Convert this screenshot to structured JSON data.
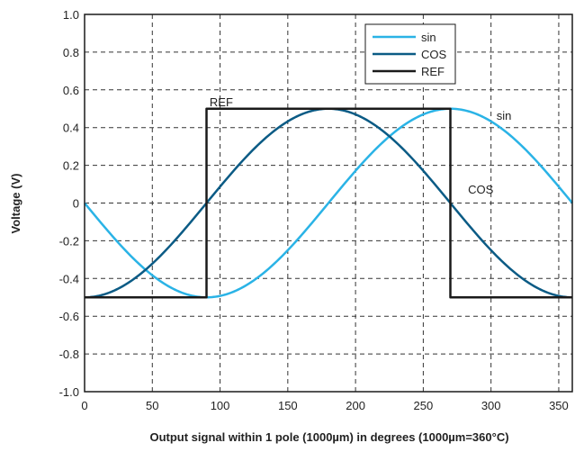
{
  "chart_data": {
    "type": "line",
    "title": "",
    "xlabel": "Output signal within 1 pole (1000µm) in degrees (1000µm=360°C)",
    "ylabel": "Voltage (V)",
    "xlim": [
      0,
      360
    ],
    "ylim": [
      -1.0,
      1.0
    ],
    "x_ticks": [
      0,
      50,
      100,
      150,
      200,
      250,
      300,
      350
    ],
    "x_tick_labels": [
      "0",
      "50",
      "100",
      "150",
      "200",
      "250",
      "300",
      "350"
    ],
    "y_ticks": [
      1.0,
      0.8,
      0.6,
      0.4,
      0.2,
      0,
      -0.2,
      -0.4,
      -0.6,
      -0.8,
      -1.0
    ],
    "y_tick_labels": [
      "1.0",
      "0.8",
      "0.6",
      "0.4",
      "0.2",
      "0",
      "-0.2",
      "-0.4",
      "-0.6",
      "-0.8",
      "-1.0"
    ],
    "grid": true,
    "grid_style": "dashed",
    "legend_position": "top-right",
    "series": [
      {
        "name": "sin",
        "color": "#2ab3e6",
        "x": [
          0,
          15,
          30,
          45,
          60,
          75,
          90,
          105,
          120,
          135,
          150,
          165,
          180,
          195,
          210,
          225,
          240,
          255,
          270,
          285,
          300,
          315,
          330,
          345,
          360
        ],
        "y": [
          0,
          -0.129,
          -0.25,
          -0.354,
          -0.433,
          -0.483,
          -0.5,
          -0.483,
          -0.433,
          -0.354,
          -0.25,
          -0.129,
          0,
          0.129,
          0.25,
          0.354,
          0.433,
          0.483,
          0.5,
          0.483,
          0.433,
          0.354,
          0.25,
          0.129,
          0
        ]
      },
      {
        "name": "COS",
        "color": "#0b5b85",
        "x": [
          0,
          15,
          30,
          45,
          60,
          75,
          90,
          105,
          120,
          135,
          150,
          165,
          180,
          195,
          210,
          225,
          240,
          255,
          270,
          285,
          300,
          315,
          330,
          345,
          360
        ],
        "y": [
          -0.5,
          -0.483,
          -0.433,
          -0.354,
          -0.25,
          -0.129,
          0,
          0.129,
          0.25,
          0.354,
          0.433,
          0.483,
          0.5,
          0.483,
          0.433,
          0.354,
          0.25,
          0.129,
          0,
          -0.129,
          -0.25,
          -0.354,
          -0.433,
          -0.483,
          -0.5
        ]
      },
      {
        "name": "REF",
        "color": "#1a1a1a",
        "x": [
          0,
          90,
          90,
          270,
          270,
          360
        ],
        "y": [
          -0.5,
          -0.5,
          0.5,
          0.5,
          -0.5,
          -0.5
        ]
      }
    ],
    "annotations": [
      {
        "text": "REF",
        "x": 75,
        "y": 0.5
      },
      {
        "text": "sin",
        "x": 304,
        "y": 0.47
      },
      {
        "text": "COS",
        "x": 283,
        "y": 0.05
      }
    ]
  }
}
